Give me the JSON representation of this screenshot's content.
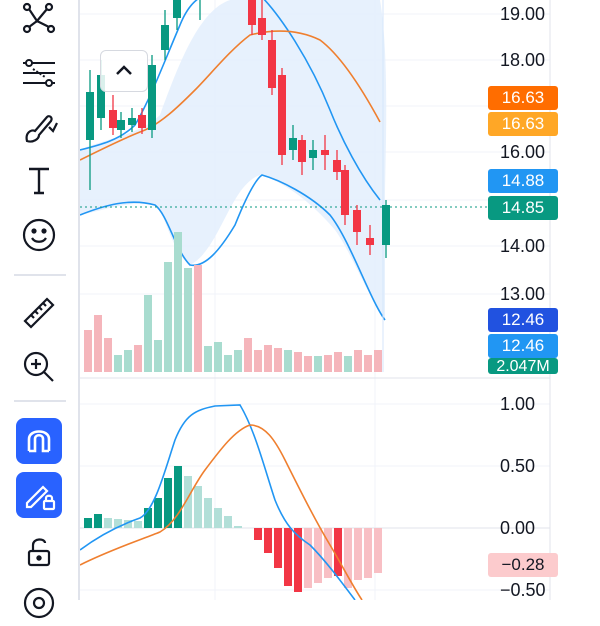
{
  "price_axis": {
    "labels": [
      "19.00",
      "18.00",
      "16.00",
      "14.00",
      "13.00"
    ]
  },
  "price_badges": [
    {
      "text": "16.63",
      "color": "#ff6d00"
    },
    {
      "text": "16.63",
      "color": "#ffa726"
    },
    {
      "text": "14.88",
      "color": "#2196f3"
    },
    {
      "text": "14.85",
      "color": "#089981"
    },
    {
      "text": "12.46",
      "color": "#2152e0"
    },
    {
      "text": "12.46",
      "color": "#2196f3"
    },
    {
      "text": "2.047M",
      "color": "#089981"
    }
  ],
  "macd_axis": {
    "labels": [
      "1.00",
      "0.50",
      "0.00",
      "−0.50"
    ]
  },
  "macd_badges": [
    {
      "text": "−0.28",
      "color": "#fccbcd",
      "text_color": "#131722"
    }
  ],
  "toolbar": {
    "icons": [
      "pattern-tool-icon",
      "fib-lines-icon",
      "brush-icon",
      "text-tool-icon",
      "emoji-icon",
      "ruler-icon",
      "zoom-in-icon",
      "magnet-icon",
      "lock-drawings-icon",
      "unlock-icon",
      "eye-icon"
    ]
  },
  "colors": {
    "up": "#089981",
    "down": "#f23645",
    "bb_band": "#2196f3",
    "bb_fill": "#e3effd",
    "ma": "#ef7f2f",
    "macd": "#2196f3",
    "signal": "#ef7f2f"
  }
}
